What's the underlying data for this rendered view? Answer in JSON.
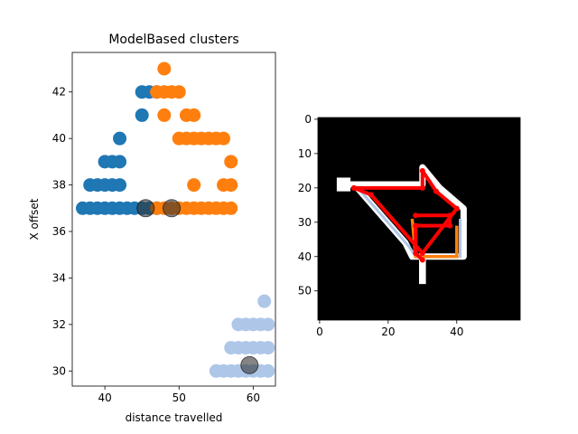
{
  "colors": {
    "cluster_0": "#1f77b4",
    "cluster_1": "#ff7f0e",
    "cluster_2": "#aec7e8",
    "center": "#333333",
    "path_red": "#ff0000",
    "image_bg": "#000000",
    "image_fg": "#ffffff"
  },
  "chart_data": [
    {
      "type": "scatter",
      "title": "ModelBased clusters",
      "xlabel": "distance travelled",
      "ylabel": "X offset",
      "xlim": [
        35.6,
        63.0
      ],
      "ylim": [
        29.35,
        43.7
      ],
      "xticks": [
        40,
        50,
        60
      ],
      "yticks": [
        30,
        32,
        34,
        36,
        38,
        40,
        42
      ],
      "grid": false,
      "series": [
        {
          "color_key": "cluster_0",
          "points": [
            [
              37,
              37
            ],
            [
              38,
              37
            ],
            [
              39,
              37
            ],
            [
              40,
              37
            ],
            [
              41,
              37
            ],
            [
              42,
              37
            ],
            [
              43,
              37
            ],
            [
              44,
              37
            ],
            [
              45,
              37
            ],
            [
              46,
              37
            ],
            [
              47,
              37
            ],
            [
              38,
              38
            ],
            [
              39,
              38
            ],
            [
              40,
              38
            ],
            [
              41,
              38
            ],
            [
              42,
              38
            ],
            [
              40,
              39
            ],
            [
              41,
              39
            ],
            [
              42,
              39
            ],
            [
              42,
              40
            ],
            [
              45,
              41
            ],
            [
              45,
              42
            ],
            [
              46,
              42
            ],
            [
              47,
              42
            ]
          ]
        },
        {
          "color_key": "cluster_1",
          "points": [
            [
              47,
              37
            ],
            [
              48,
              37
            ],
            [
              49,
              37
            ],
            [
              50,
              37
            ],
            [
              51,
              37
            ],
            [
              52,
              37
            ],
            [
              53,
              37
            ],
            [
              54,
              37
            ],
            [
              55,
              37
            ],
            [
              56,
              37
            ],
            [
              57,
              37
            ],
            [
              56,
              38
            ],
            [
              57,
              38
            ],
            [
              52,
              38
            ],
            [
              57,
              39
            ],
            [
              50,
              40
            ],
            [
              51,
              40
            ],
            [
              52,
              40
            ],
            [
              53,
              40
            ],
            [
              54,
              40
            ],
            [
              55,
              40
            ],
            [
              56,
              40
            ],
            [
              48,
              41
            ],
            [
              51,
              41
            ],
            [
              52,
              41
            ],
            [
              47,
              42
            ],
            [
              48,
              42
            ],
            [
              49,
              42
            ],
            [
              50,
              42
            ],
            [
              48,
              43
            ]
          ]
        },
        {
          "color_key": "cluster_2",
          "points": [
            [
              55,
              30
            ],
            [
              56,
              30
            ],
            [
              57,
              30
            ],
            [
              58,
              30
            ],
            [
              59,
              30
            ],
            [
              60,
              30
            ],
            [
              61,
              30
            ],
            [
              62,
              30
            ],
            [
              57,
              31
            ],
            [
              58,
              31
            ],
            [
              59,
              31
            ],
            [
              60,
              31
            ],
            [
              61,
              31
            ],
            [
              62,
              31
            ],
            [
              58,
              32
            ],
            [
              59,
              32
            ],
            [
              60,
              32
            ],
            [
              61,
              32
            ],
            [
              62,
              32
            ],
            [
              61.5,
              33
            ]
          ]
        }
      ],
      "centers": [
        [
          45.5,
          37
        ],
        [
          49,
          37
        ],
        [
          59.5,
          30.25
        ]
      ]
    },
    {
      "type": "heatmap",
      "xlim": [
        0,
        59
      ],
      "ylim": [
        59,
        0
      ],
      "xticks": [
        0,
        20,
        40
      ],
      "yticks": [
        0,
        10,
        20,
        30,
        40,
        50
      ],
      "red_path": [
        [
          10,
          20
        ],
        [
          30,
          20
        ],
        [
          30,
          15
        ],
        [
          34,
          21
        ],
        [
          40,
          26
        ],
        [
          30,
          39
        ],
        [
          15,
          22
        ],
        [
          10,
          20
        ]
      ],
      "red_path_2": [
        [
          28,
          28
        ],
        [
          38,
          28
        ],
        [
          38,
          31
        ],
        [
          28,
          31
        ],
        [
          28,
          39
        ],
        [
          30,
          41
        ]
      ]
    }
  ]
}
